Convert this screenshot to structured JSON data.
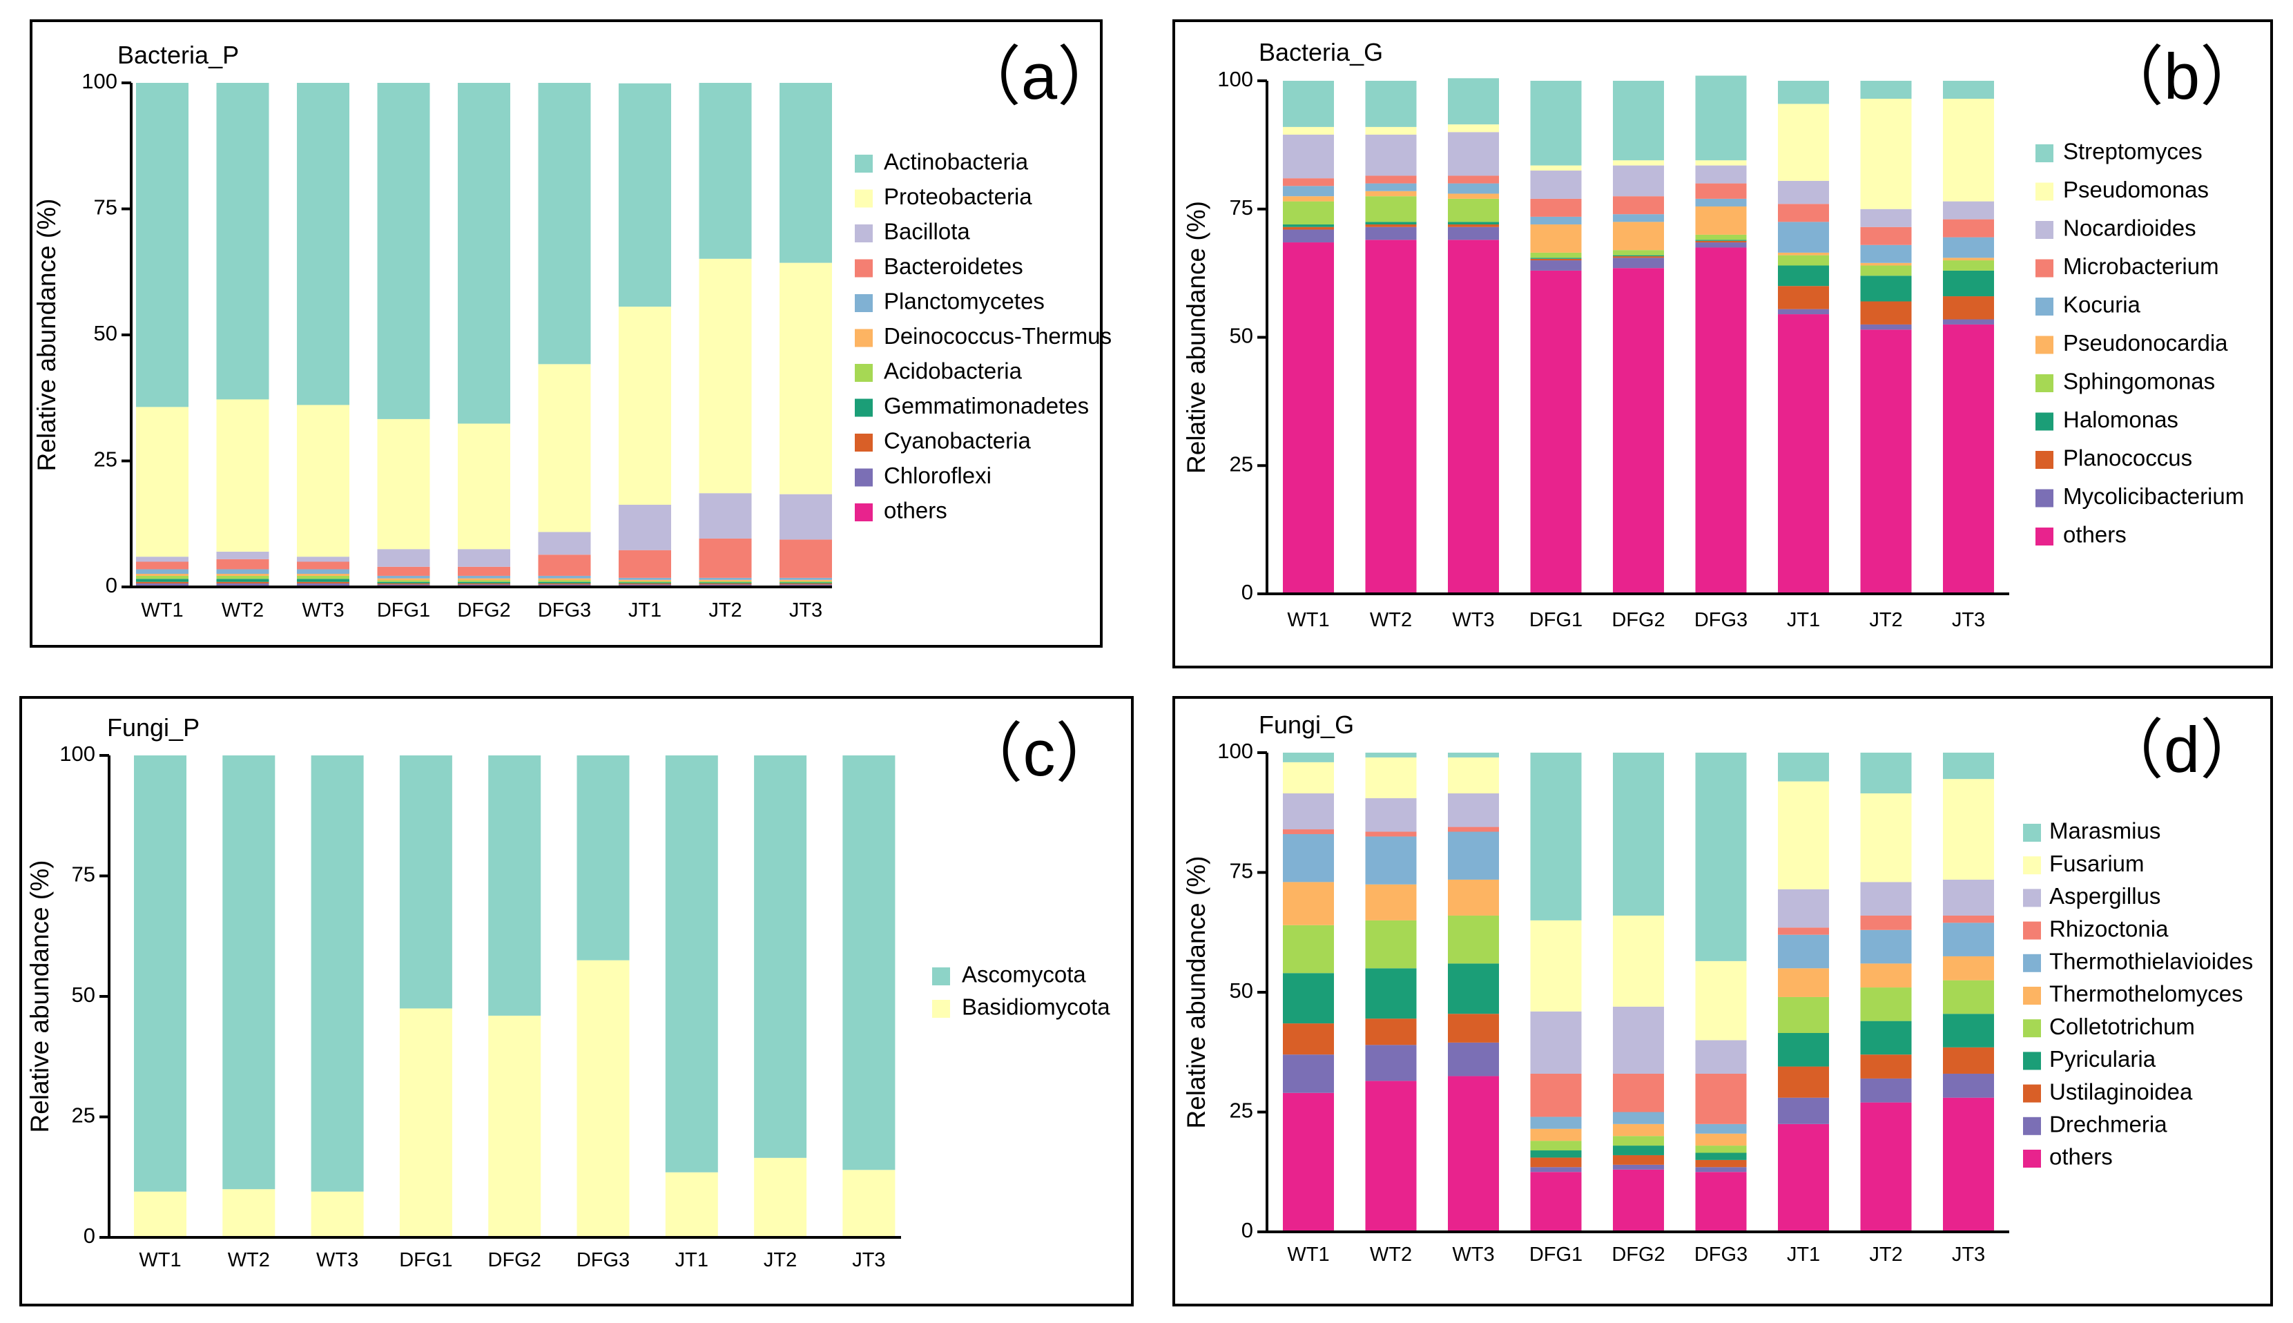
{
  "chart_data": [
    {
      "type": "bar",
      "stacked": true,
      "title": "Bacteria_P",
      "tag": "（a）",
      "ylabel": "Relative abundance (%)",
      "ylim": [
        0,
        100
      ],
      "yticks": [
        "0",
        "25",
        "50",
        "75",
        "100"
      ],
      "categories": [
        "WT1",
        "WT2",
        "WT3",
        "DFG1",
        "DFG2",
        "DFG3",
        "JT1",
        "JT2",
        "JT3"
      ],
      "series": [
        {
          "name": "others",
          "color": "#E8238D",
          "values": [
            0.3,
            0.3,
            0.3,
            0.3,
            0.3,
            0.3,
            0.3,
            0.3,
            0.3
          ]
        },
        {
          "name": "Chloroflexi",
          "color": "#7B6FB5",
          "values": [
            0.4,
            0.4,
            0.4,
            0.2,
            0.2,
            0.2,
            0.2,
            0.2,
            0.2
          ]
        },
        {
          "name": "Cyanobacteria",
          "color": "#D95F27",
          "values": [
            0.3,
            0.3,
            0.3,
            0.2,
            0.2,
            0.2,
            0.2,
            0.2,
            0.2
          ]
        },
        {
          "name": "Gemmatimonadetes",
          "color": "#1B9E77",
          "values": [
            0.6,
            0.6,
            0.6,
            0.3,
            0.3,
            0.3,
            0.2,
            0.2,
            0.2
          ]
        },
        {
          "name": "Acidobacteria",
          "color": "#A6D854",
          "values": [
            0.6,
            0.6,
            0.6,
            0.3,
            0.3,
            0.3,
            0.2,
            0.2,
            0.2
          ]
        },
        {
          "name": "Deinococcus-Thermus",
          "color": "#FDB462",
          "values": [
            0.4,
            0.4,
            0.4,
            0.4,
            0.4,
            0.4,
            0.3,
            0.3,
            0.3
          ]
        },
        {
          "name": "Planctomycetes",
          "color": "#80B1D3",
          "values": [
            0.9,
            0.9,
            0.9,
            0.5,
            0.5,
            0.5,
            0.4,
            0.4,
            0.4
          ]
        },
        {
          "name": "Bacteroidetes",
          "color": "#F47F72",
          "values": [
            1.5,
            2.0,
            1.5,
            1.8,
            1.8,
            4.2,
            5.5,
            7.8,
            7.6
          ]
        },
        {
          "name": "Bacillota",
          "color": "#BEBADA",
          "values": [
            1.0,
            1.5,
            1.0,
            3.5,
            3.5,
            4.5,
            9.0,
            9.0,
            9.0
          ]
        },
        {
          "name": "Proteobacteria",
          "color": "#FFFFB3",
          "values": [
            29.7,
            30.2,
            30.1,
            25.8,
            24.9,
            33.3,
            39.3,
            46.5,
            45.9
          ]
        },
        {
          "name": "Actinobacteria",
          "color": "#8DD3C7",
          "values": [
            64.3,
            62.8,
            63.9,
            66.7,
            67.6,
            55.8,
            44.3,
            34.9,
            35.7
          ]
        }
      ]
    },
    {
      "type": "bar",
      "stacked": true,
      "title": "Bacteria_G",
      "tag": "（b）",
      "ylabel": "Relative abundance (%)",
      "ylim": [
        0,
        100
      ],
      "yticks": [
        "0",
        "25",
        "50",
        "75",
        "100"
      ],
      "categories": [
        "WT1",
        "WT2",
        "WT3",
        "DFG1",
        "DFG2",
        "DFG3",
        "JT1",
        "JT2",
        "JT3"
      ],
      "series": [
        {
          "name": "others",
          "color": "#E8238D",
          "values": [
            68.5,
            69.0,
            69.0,
            63.0,
            63.5,
            67.5,
            54.5,
            51.5,
            52.5
          ]
        },
        {
          "name": "Mycolicibacterium",
          "color": "#7B6FB5",
          "values": [
            2.5,
            2.5,
            2.5,
            2.0,
            2.0,
            1.0,
            1.0,
            1.0,
            1.0
          ]
        },
        {
          "name": "Planococcus",
          "color": "#D95F27",
          "values": [
            0.5,
            0.5,
            0.5,
            0.3,
            0.3,
            0.3,
            4.5,
            4.5,
            4.5
          ]
        },
        {
          "name": "Halomonas",
          "color": "#1B9E77",
          "values": [
            0.5,
            0.5,
            0.5,
            0.2,
            0.2,
            0.2,
            4.0,
            5.0,
            5.0
          ]
        },
        {
          "name": "Sphingomonas",
          "color": "#A6D854",
          "values": [
            4.5,
            5.0,
            4.5,
            1.0,
            1.0,
            1.0,
            2.0,
            2.0,
            2.0
          ]
        },
        {
          "name": "Pseudonocardia",
          "color": "#FDB462",
          "values": [
            1.0,
            1.0,
            1.0,
            5.5,
            5.5,
            5.5,
            0.5,
            0.5,
            0.5
          ]
        },
        {
          "name": "Kocuria",
          "color": "#80B1D3",
          "values": [
            2.0,
            1.5,
            2.0,
            1.5,
            1.5,
            1.5,
            6.0,
            3.5,
            4.0
          ]
        },
        {
          "name": "Microbacterium",
          "color": "#F47F72",
          "values": [
            1.5,
            1.5,
            1.5,
            3.5,
            3.5,
            3.0,
            3.5,
            3.5,
            3.5
          ]
        },
        {
          "name": "Nocardioides",
          "color": "#BEBADA",
          "values": [
            8.5,
            8.0,
            8.5,
            5.5,
            6.0,
            3.5,
            4.5,
            3.5,
            3.5
          ]
        },
        {
          "name": "Pseudomonas",
          "color": "#FFFFB3",
          "values": [
            1.5,
            1.5,
            1.5,
            1.0,
            1.0,
            1.0,
            15.0,
            21.5,
            20.0
          ]
        },
        {
          "name": "Streptomyces",
          "color": "#8DD3C7",
          "values": [
            9.0,
            9.0,
            9.0,
            16.5,
            15.5,
            16.5,
            4.5,
            3.5,
            3.5
          ]
        }
      ]
    },
    {
      "type": "bar",
      "stacked": true,
      "title": "Fungi_P",
      "tag": "（c）",
      "ylabel": "Relative abundance (%)",
      "ylim": [
        0,
        100
      ],
      "yticks": [
        "0",
        "25",
        "50",
        "75",
        "100"
      ],
      "categories": [
        "WT1",
        "WT2",
        "WT3",
        "DFG1",
        "DFG2",
        "DFG3",
        "JT1",
        "JT2",
        "JT3"
      ],
      "series": [
        {
          "name": "Basidiomycota",
          "color": "#FFFFB3",
          "values": [
            9.5,
            10.0,
            9.5,
            47.5,
            46.0,
            57.5,
            13.5,
            16.5,
            14.0
          ]
        },
        {
          "name": "Ascomycota",
          "color": "#8DD3C7",
          "values": [
            90.5,
            90.0,
            90.5,
            52.5,
            54.0,
            42.5,
            86.5,
            83.5,
            86.0
          ]
        }
      ]
    },
    {
      "type": "bar",
      "stacked": true,
      "title": "Fungi_G",
      "tag": "（d）",
      "ylabel": "Relative abundance (%)",
      "ylim": [
        0,
        100
      ],
      "yticks": [
        "0",
        "25",
        "50",
        "75",
        "100"
      ],
      "categories": [
        "WT1",
        "WT2",
        "WT3",
        "DFG1",
        "DFG2",
        "DFG3",
        "JT1",
        "JT2",
        "JT3"
      ],
      "series": [
        {
          "name": "others",
          "color": "#E8238D",
          "values": [
            29.0,
            31.5,
            32.5,
            12.5,
            13.0,
            12.5,
            22.5,
            27.0,
            28.0
          ]
        },
        {
          "name": "Drechmeria",
          "color": "#7B6FB5",
          "values": [
            8.0,
            7.5,
            7.0,
            1.0,
            1.0,
            1.0,
            5.5,
            5.0,
            5.0
          ]
        },
        {
          "name": "Ustilaginoidea",
          "color": "#D95F27",
          "values": [
            6.5,
            5.5,
            6.0,
            2.0,
            2.0,
            1.5,
            6.5,
            5.0,
            5.5
          ]
        },
        {
          "name": "Pyricularia",
          "color": "#1B9E77",
          "values": [
            10.5,
            10.5,
            10.5,
            1.5,
            2.0,
            1.5,
            7.0,
            7.0,
            7.0
          ]
        },
        {
          "name": "Colletotrichum",
          "color": "#A6D854",
          "values": [
            10.0,
            10.0,
            10.0,
            2.0,
            2.0,
            1.5,
            7.5,
            7.0,
            7.0
          ]
        },
        {
          "name": "Thermothelomyces",
          "color": "#FDB462",
          "values": [
            9.0,
            7.5,
            7.5,
            2.5,
            2.5,
            2.5,
            6.0,
            5.0,
            5.0
          ]
        },
        {
          "name": "Thermothielavioides",
          "color": "#80B1D3",
          "values": [
            10.0,
            10.0,
            10.0,
            2.5,
            2.5,
            2.0,
            7.0,
            7.0,
            7.0
          ]
        },
        {
          "name": "Rhizoctonia",
          "color": "#F47F72",
          "values": [
            1.0,
            1.0,
            1.0,
            9.0,
            8.0,
            10.5,
            1.5,
            3.0,
            1.5
          ]
        },
        {
          "name": "Aspergillus",
          "color": "#BEBADA",
          "values": [
            7.5,
            7.0,
            7.0,
            13.0,
            14.0,
            7.0,
            8.0,
            7.0,
            7.5
          ]
        },
        {
          "name": "Fusarium",
          "color": "#FFFFB3",
          "values": [
            6.5,
            8.5,
            7.5,
            19.0,
            19.0,
            16.5,
            22.5,
            18.5,
            21.0
          ]
        },
        {
          "name": "Marasmius",
          "color": "#8DD3C7",
          "values": [
            2.0,
            1.0,
            1.0,
            35.0,
            34.0,
            43.5,
            6.0,
            8.5,
            5.5
          ]
        }
      ]
    }
  ]
}
